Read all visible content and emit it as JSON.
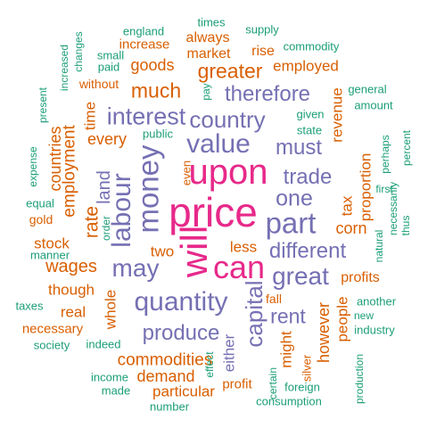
{
  "palette": {
    "teal": "#1b9e77",
    "orange": "#d95f02",
    "purple": "#7570b3",
    "magenta": "#e7298a"
  },
  "words": [
    {
      "text": "price",
      "color": "magenta",
      "rotated": false
    },
    {
      "text": "upon",
      "color": "magenta",
      "rotated": false
    },
    {
      "text": "will",
      "color": "magenta",
      "rotated": true
    },
    {
      "text": "can",
      "color": "magenta",
      "rotated": false
    },
    {
      "text": "value",
      "color": "purple",
      "rotated": false
    },
    {
      "text": "money",
      "color": "purple",
      "rotated": true
    },
    {
      "text": "labour",
      "color": "purple",
      "rotated": true
    },
    {
      "text": "part",
      "color": "purple",
      "rotated": false
    },
    {
      "text": "quantity",
      "color": "purple",
      "rotated": false
    },
    {
      "text": "capital",
      "color": "purple",
      "rotated": true
    },
    {
      "text": "may",
      "color": "purple",
      "rotated": false
    },
    {
      "text": "great",
      "color": "purple",
      "rotated": false
    },
    {
      "text": "interest",
      "color": "purple",
      "rotated": false
    },
    {
      "text": "country",
      "color": "purple",
      "rotated": false
    },
    {
      "text": "one",
      "color": "purple",
      "rotated": false
    },
    {
      "text": "trade",
      "color": "purple",
      "rotated": false
    },
    {
      "text": "different",
      "color": "purple",
      "rotated": false
    },
    {
      "text": "must",
      "color": "purple",
      "rotated": false
    },
    {
      "text": "produce",
      "color": "purple",
      "rotated": false
    },
    {
      "text": "therefore",
      "color": "purple",
      "rotated": false
    },
    {
      "text": "rent",
      "color": "purple",
      "rotated": false
    },
    {
      "text": "land",
      "color": "purple",
      "rotated": true
    },
    {
      "text": "either",
      "color": "purple",
      "rotated": true
    },
    {
      "text": "greater",
      "color": "orange",
      "rotated": false
    },
    {
      "text": "much",
      "color": "orange",
      "rotated": false
    },
    {
      "text": "goods",
      "color": "orange",
      "rotated": false
    },
    {
      "text": "rate",
      "color": "orange",
      "rotated": true
    },
    {
      "text": "employment",
      "color": "orange",
      "rotated": true
    },
    {
      "text": "countries",
      "color": "orange",
      "rotated": true
    },
    {
      "text": "every",
      "color": "orange",
      "rotated": false
    },
    {
      "text": "time",
      "color": "orange",
      "rotated": true
    },
    {
      "text": "wages",
      "color": "orange",
      "rotated": false
    },
    {
      "text": "stock",
      "color": "orange",
      "rotated": false
    },
    {
      "text": "though",
      "color": "orange",
      "rotated": false
    },
    {
      "text": "real",
      "color": "orange",
      "rotated": false
    },
    {
      "text": "whole",
      "color": "orange",
      "rotated": true
    },
    {
      "text": "necessary",
      "color": "orange",
      "rotated": false
    },
    {
      "text": "commodities",
      "color": "orange",
      "rotated": false
    },
    {
      "text": "demand",
      "color": "orange",
      "rotated": false
    },
    {
      "text": "particular",
      "color": "orange",
      "rotated": false
    },
    {
      "text": "profit",
      "color": "orange",
      "rotated": false
    },
    {
      "text": "might",
      "color": "orange",
      "rotated": true
    },
    {
      "text": "however",
      "color": "orange",
      "rotated": true
    },
    {
      "text": "people",
      "color": "orange",
      "rotated": true
    },
    {
      "text": "profits",
      "color": "orange",
      "rotated": false
    },
    {
      "text": "corn",
      "color": "orange",
      "rotated": false
    },
    {
      "text": "tax",
      "color": "orange",
      "rotated": true
    },
    {
      "text": "proportion",
      "color": "orange",
      "rotated": true
    },
    {
      "text": "revenue",
      "color": "orange",
      "rotated": true
    },
    {
      "text": "employed",
      "color": "orange",
      "rotated": false
    },
    {
      "text": "market",
      "color": "orange",
      "rotated": false
    },
    {
      "text": "always",
      "color": "orange",
      "rotated": false
    },
    {
      "text": "rise",
      "color": "orange",
      "rotated": false
    },
    {
      "text": "increase",
      "color": "orange",
      "rotated": false
    },
    {
      "text": "without",
      "color": "orange",
      "rotated": false
    },
    {
      "text": "two",
      "color": "orange",
      "rotated": false
    },
    {
      "text": "less",
      "color": "orange",
      "rotated": false
    },
    {
      "text": "fall",
      "color": "orange",
      "rotated": false
    },
    {
      "text": "gold",
      "color": "orange",
      "rotated": false
    },
    {
      "text": "silver",
      "color": "orange",
      "rotated": true
    },
    {
      "text": "even",
      "color": "orange",
      "rotated": true
    },
    {
      "text": "england",
      "color": "teal",
      "rotated": false
    },
    {
      "text": "times",
      "color": "teal",
      "rotated": false
    },
    {
      "text": "supply",
      "color": "teal",
      "rotated": false
    },
    {
      "text": "commodity",
      "color": "teal",
      "rotated": false
    },
    {
      "text": "small",
      "color": "teal",
      "rotated": false
    },
    {
      "text": "paid",
      "color": "teal",
      "rotated": false
    },
    {
      "text": "changes",
      "color": "teal",
      "rotated": true
    },
    {
      "text": "increased",
      "color": "teal",
      "rotated": true
    },
    {
      "text": "present",
      "color": "teal",
      "rotated": true
    },
    {
      "text": "expense",
      "color": "teal",
      "rotated": true
    },
    {
      "text": "equal",
      "color": "teal",
      "rotated": false
    },
    {
      "text": "manner",
      "color": "teal",
      "rotated": false
    },
    {
      "text": "taxes",
      "color": "teal",
      "rotated": false
    },
    {
      "text": "society",
      "color": "teal",
      "rotated": false
    },
    {
      "text": "indeed",
      "color": "teal",
      "rotated": false
    },
    {
      "text": "income",
      "color": "teal",
      "rotated": false
    },
    {
      "text": "made",
      "color": "teal",
      "rotated": false
    },
    {
      "text": "number",
      "color": "teal",
      "rotated": false
    },
    {
      "text": "effect",
      "color": "teal",
      "rotated": true
    },
    {
      "text": "certain",
      "color": "teal",
      "rotated": true
    },
    {
      "text": "foreign",
      "color": "teal",
      "rotated": false
    },
    {
      "text": "consumption",
      "color": "teal",
      "rotated": false
    },
    {
      "text": "production",
      "color": "teal",
      "rotated": true
    },
    {
      "text": "industry",
      "color": "teal",
      "rotated": false
    },
    {
      "text": "new",
      "color": "teal",
      "rotated": false
    },
    {
      "text": "another",
      "color": "teal",
      "rotated": false
    },
    {
      "text": "natural",
      "color": "teal",
      "rotated": true
    },
    {
      "text": "necessarily",
      "color": "teal",
      "rotated": true
    },
    {
      "text": "thus",
      "color": "teal",
      "rotated": true
    },
    {
      "text": "first",
      "color": "teal",
      "rotated": false
    },
    {
      "text": "perhaps",
      "color": "teal",
      "rotated": true
    },
    {
      "text": "percent",
      "color": "teal",
      "rotated": true
    },
    {
      "text": "given",
      "color": "teal",
      "rotated": false
    },
    {
      "text": "state",
      "color": "teal",
      "rotated": false
    },
    {
      "text": "amount",
      "color": "teal",
      "rotated": false
    },
    {
      "text": "general",
      "color": "teal",
      "rotated": false
    },
    {
      "text": "pay",
      "color": "teal",
      "rotated": true
    },
    {
      "text": "public",
      "color": "teal",
      "rotated": false
    },
    {
      "text": "order",
      "color": "teal",
      "rotated": true
    }
  ]
}
